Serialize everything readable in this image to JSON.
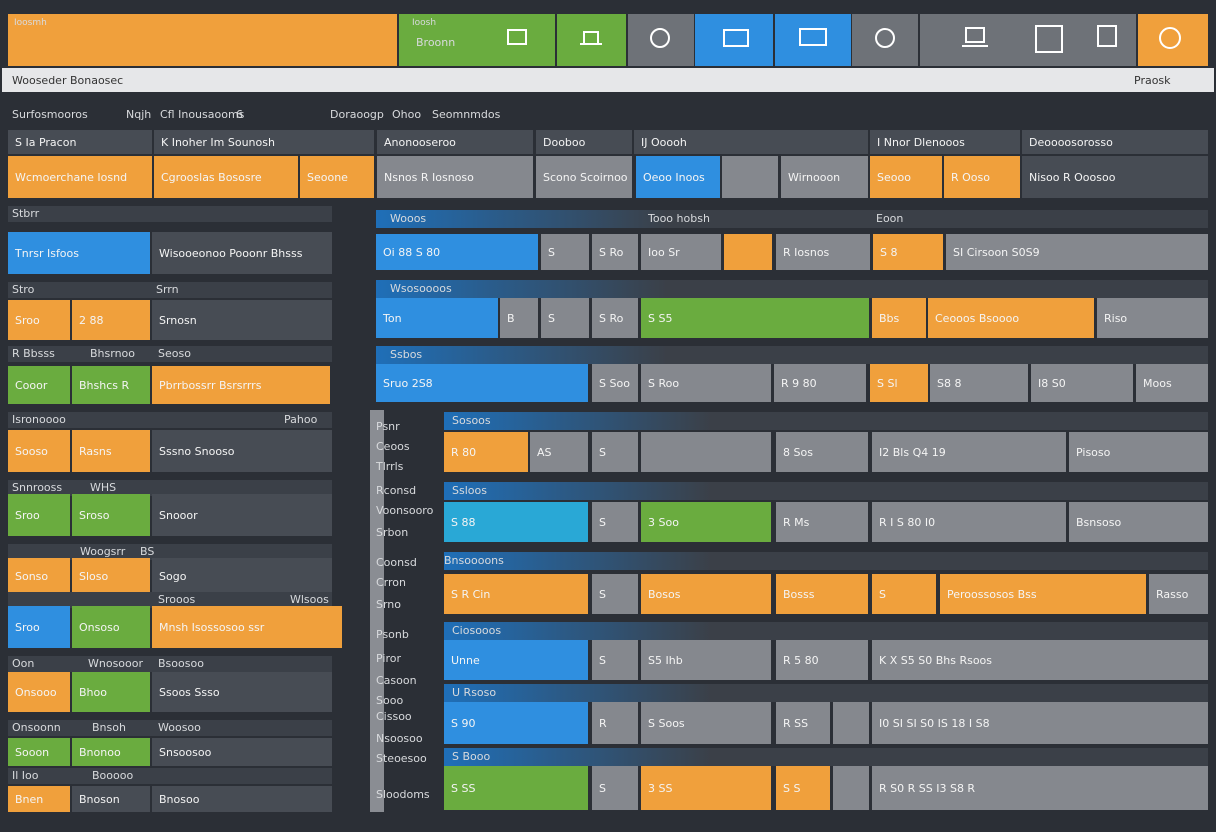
{
  "header": {
    "tiles": [
      "Ioosmh",
      "Ioosh",
      "Broonn"
    ]
  },
  "search": {
    "placeholder": "Wooseder Bonaosec",
    "action": "Praosk"
  },
  "toolbar": [
    "Surfosmooros",
    "Nqjh",
    "Cfl Inousaooms",
    "6",
    "Doraoogp",
    "Ohoo",
    "Seomnmdos"
  ],
  "cards": [
    {
      "title": "S Ia Pracon",
      "cells": [
        "Wcmoerchane Iosnd"
      ]
    },
    {
      "title": "K Inoher Im Sounosh",
      "cells": [
        "Cgrooslas Bososre",
        "Seoone"
      ]
    },
    {
      "title": "Anonooseroo",
      "cells": [
        "Nsnos R Iosnoso"
      ]
    },
    {
      "title": "Dooboo",
      "cells": [
        "Scono Scoirnoo"
      ]
    },
    {
      "title": "IJ Ooooh",
      "cells": [
        "Oeoo Inoos",
        "Wirnooon"
      ]
    },
    {
      "title": "I Nnor Dlenooos",
      "cells": [
        "Seooo",
        "R Ooso"
      ]
    },
    {
      "title": "Deoooosorosso",
      "cells": [
        "Nisoo R Ooosoo"
      ]
    }
  ],
  "left": [
    {
      "header": [
        "Stbrr"
      ],
      "cells": [
        "Tnrsr Isfoos",
        "Wisooeonoo Pooonr Bhsss"
      ]
    },
    {
      "header": [
        "Stro",
        "Srrn"
      ],
      "cells": [
        "Sroo",
        "2 88",
        "Srnosn"
      ]
    },
    {
      "header": [
        "R Bbsss",
        "Bhsrnoo",
        "Seoso"
      ],
      "cells": [
        "Cooor",
        "Bhshcs R",
        "Pbrrbossrr Bsrsrrrs"
      ]
    },
    {
      "header": [
        "Isronoooo",
        "Pahoo"
      ],
      "cells": [
        "Sooso",
        "Rasns",
        "Sssno Snooso"
      ]
    },
    {
      "header": [
        "Snnrooss",
        "WHS"
      ],
      "cells": [
        "Sroo",
        "Sroso",
        "Snooor"
      ]
    },
    {
      "header": [
        "Woogsrr",
        "BS"
      ],
      "cells": [
        "Sonso",
        "Sloso",
        "Sogo"
      ]
    },
    {
      "header": [
        "Srooos",
        "Wlsoos"
      ],
      "cells": [
        "Sroo",
        "Onsoso",
        "Mnsh Isossosoo ssr"
      ]
    },
    {
      "header": [
        "Oon",
        "Wnosooor",
        "Bsoosoo"
      ],
      "cells": [
        "Onsooo",
        "Bhoo",
        "Ssoos Ssso"
      ]
    },
    {
      "header": [
        "Onsoonn",
        "Bnsoh",
        "Woosoo"
      ],
      "cells": [
        "Sooon",
        "Bnonoo",
        "Snsoosoo"
      ]
    },
    {
      "header": [
        "Il Ioo",
        "Booooo"
      ],
      "cells": [
        "Bnen",
        "Bnoson",
        "Bnosoo"
      ]
    }
  ],
  "labels": [
    "Psnr",
    "Ceoos",
    "Tlrrls",
    "Rconsd",
    "Voonsooro",
    "Srbon",
    "Coonsd",
    "Crron",
    "Srno",
    "Psonb",
    "Piror",
    "Casoon",
    "Sooo",
    "Cissoo",
    "Nsoosoo",
    "Steoesoo",
    "Sloodoms"
  ],
  "main": [
    {
      "header": [
        "Wooos",
        "Tooo hobsh",
        "Eoon"
      ],
      "cells": [
        "Oi 88   S 80",
        "S",
        "S Ro",
        "Ioo Sr",
        "R Iosnos",
        "S 8",
        "SI Cirsoon   S0S9"
      ]
    },
    {
      "header": [
        "Wsosoooos"
      ],
      "cells": [
        "Ton",
        "B",
        "S",
        "S Ro",
        "S S5",
        "Bbs",
        "Ceooos Bsoooo",
        "Riso"
      ]
    },
    {
      "header": [
        "Ssbos"
      ],
      "cells": [
        "Sruo   2S8",
        "S Soo",
        "S Roo",
        "R 9 80",
        "S Sl",
        "S8 8",
        "I8 S0",
        "Moos"
      ]
    },
    {
      "header": [
        "Sosoos"
      ],
      "cells": [
        "R 80",
        "AS",
        "S",
        "8 Sos",
        "I2 Bls   Q4 19",
        "Pisoso"
      ]
    },
    {
      "header": [
        "Ssloos"
      ],
      "cells": [
        "S 88",
        "S",
        "3 Soo",
        "R Ms",
        "R I   S 80   I0",
        "Bsnsoso"
      ]
    },
    {
      "header": [
        "Bnsoooons"
      ],
      "cells": [
        "S R   Cin",
        "S",
        "Bosos",
        "Bosss",
        "S",
        "Peroossosos Bss",
        "Rasso"
      ]
    },
    {
      "header": [
        "Ciosooos"
      ],
      "cells": [
        "Unne",
        "S",
        "S5 Ihb",
        "R 5 80",
        "K X   S5 S0   Bhs   Rsoos"
      ]
    },
    {
      "header": [
        "U Rsoso"
      ],
      "cells": [
        "S 90",
        "R",
        "S Soos",
        "R SS",
        "I0 SI   SI S0   IS 18   I S8"
      ]
    },
    {
      "header": [
        "S Booo"
      ],
      "cells": [
        "S SS",
        "S",
        "3 SS",
        "S S",
        "R S0   R SS   I3 S8   R"
      ]
    }
  ]
}
